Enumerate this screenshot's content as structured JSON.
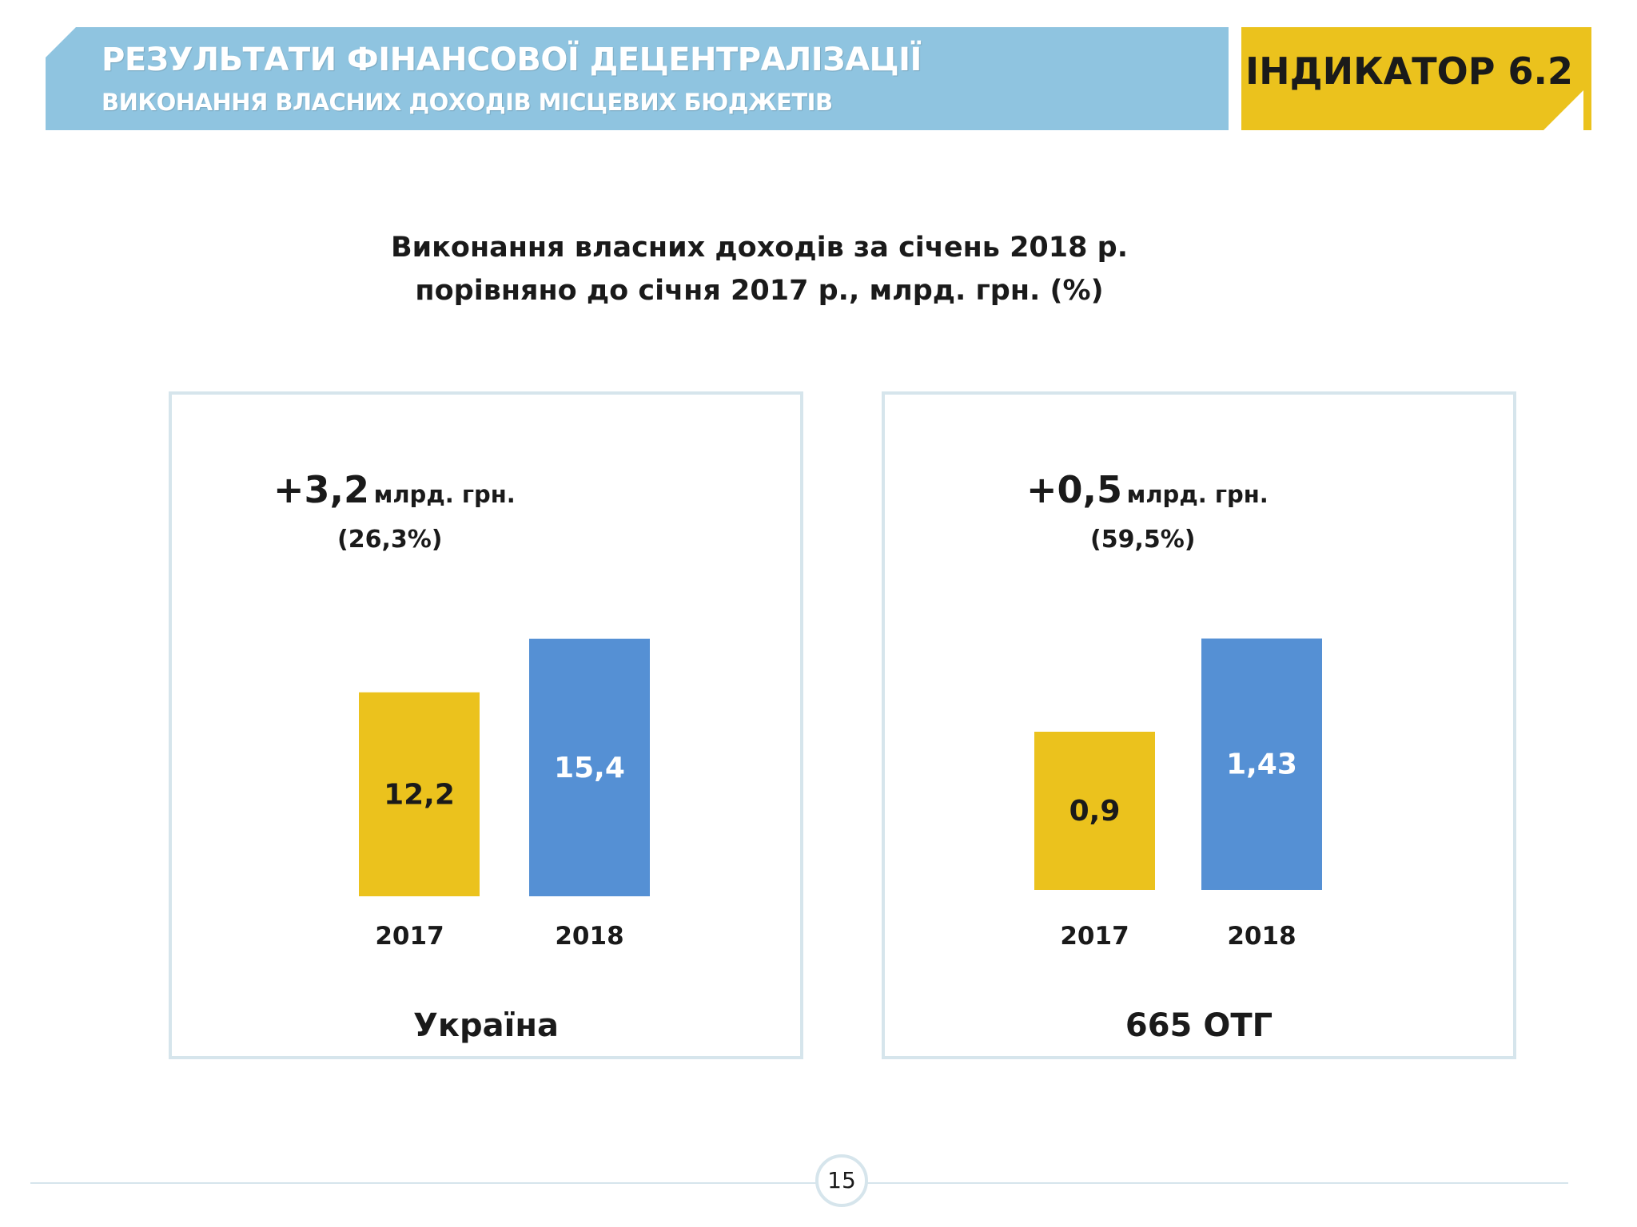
{
  "header": {
    "title": "РЕЗУЛЬТАТИ ФІНАНСОВОЇ ДЕЦЕНТРАЛІЗАЦІЇ",
    "subtitle": "ВИКОНАННЯ ВЛАСНИХ ДОХОДІВ МІСЦЕВИХ БЮДЖЕТІВ",
    "indicator": "ІНДИКАТОР 6.2",
    "band_color": "#8fc4e0",
    "indicator_color": "#ebc21d"
  },
  "chart_title": {
    "line1": "Виконання власних доходів за січень 2018 р.",
    "line2": "порівняно до січня 2017 р., млрд. грн. (%)"
  },
  "panels": [
    {
      "name": "Україна",
      "delta": "+3,2",
      "delta_unit": "млрд. грн.",
      "percent": "(26,3%)"
    },
    {
      "name": "665 ОТГ",
      "delta": "+0,5",
      "delta_unit": "млрд. грн.",
      "percent": "(59,5%)"
    }
  ],
  "chart_data": [
    {
      "type": "bar",
      "title": "Україна",
      "categories": [
        "2017",
        "2018"
      ],
      "values": [
        12.2,
        15.4
      ],
      "value_labels": [
        "12,2",
        "15,4"
      ],
      "colors": [
        "#ebc21d",
        "#5590d4"
      ],
      "value_label_colors": [
        "#1a1a1a",
        "#ffffff"
      ],
      "ylim": [
        0,
        17.2
      ]
    },
    {
      "type": "bar",
      "title": "665 ОТГ",
      "categories": [
        "2017",
        "2018"
      ],
      "values": [
        0.9,
        1.43
      ],
      "value_labels": [
        "0,9",
        "1,43"
      ],
      "colors": [
        "#ebc21d",
        "#5590d4"
      ],
      "value_label_colors": [
        "#1a1a1a",
        "#ffffff"
      ],
      "ylim": [
        0,
        1.6
      ]
    }
  ],
  "footer": {
    "page_number": "15"
  }
}
